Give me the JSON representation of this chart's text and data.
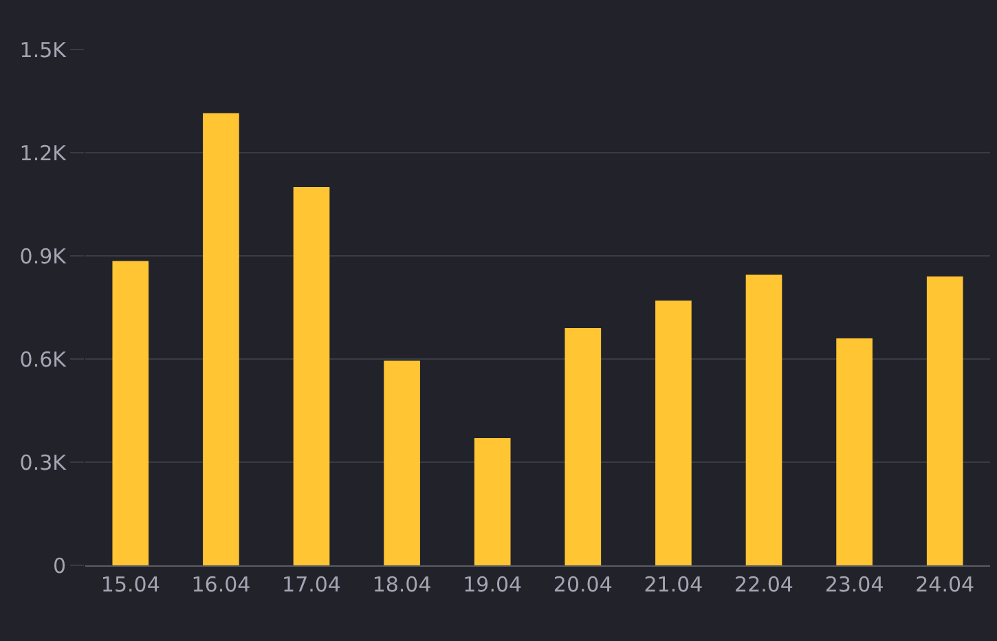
{
  "chart_data": {
    "type": "bar",
    "categories": [
      "15.04",
      "16.04",
      "17.04",
      "18.04",
      "19.04",
      "20.04",
      "21.04",
      "22.04",
      "23.04",
      "24.04"
    ],
    "values": [
      885,
      1315,
      1100,
      595,
      370,
      690,
      770,
      845,
      660,
      840
    ],
    "color": "#ffc533",
    "ylim": [
      0,
      1500
    ],
    "yticks": [
      0,
      {
        "value": 300,
        "label": "0.3K"
      },
      {
        "value": 600,
        "label": "0.6K"
      },
      {
        "value": 900,
        "label": "0.9K"
      },
      {
        "value": 1200,
        "label": "1.2K"
      },
      {
        "value": 1500,
        "label": "1.5K"
      }
    ],
    "grid": "y"
  }
}
